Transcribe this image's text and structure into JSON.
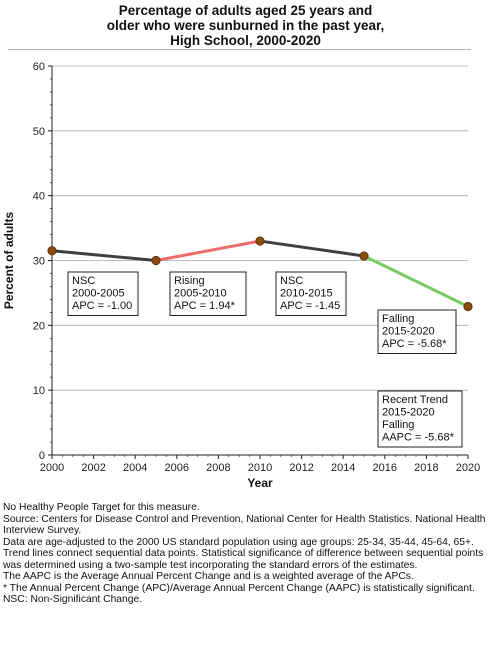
{
  "title": {
    "line1": "Percentage of adults aged 25 years and",
    "line2": "older who were sunburned in the past year,",
    "line3": "High School,  2000-2020"
  },
  "chart_data": {
    "type": "line",
    "xlabel": "Year",
    "ylabel": "Percent of adults",
    "xlim": [
      2000,
      2020
    ],
    "ylim": [
      0,
      60
    ],
    "xticks": [
      2000,
      2002,
      2004,
      2006,
      2008,
      2010,
      2012,
      2014,
      2016,
      2018,
      2020
    ],
    "yticks": [
      0,
      10,
      20,
      30,
      40,
      50,
      60
    ],
    "grid": "horizontal",
    "points": [
      {
        "x": 2000,
        "y": 31.5
      },
      {
        "x": 2005,
        "y": 30.0
      },
      {
        "x": 2010,
        "y": 33.0
      },
      {
        "x": 2015,
        "y": 30.7
      },
      {
        "x": 2020,
        "y": 22.9
      }
    ],
    "segments": [
      {
        "from": 2000,
        "to": 2005,
        "color": "#404040",
        "trend": "NSC"
      },
      {
        "from": 2005,
        "to": 2010,
        "color": "#ee6b6b",
        "trend": "Rising"
      },
      {
        "from": 2010,
        "to": 2015,
        "color": "#404040",
        "trend": "NSC"
      },
      {
        "from": 2015,
        "to": 2020,
        "color": "#77cc66",
        "trend": "Falling"
      }
    ],
    "marker_color": "#8b4a0e",
    "annotations": [
      {
        "lines": [
          "NSC",
          "2000-2005",
          "APC = -1.00"
        ]
      },
      {
        "lines": [
          "Rising",
          "2005-2010",
          "APC =  1.94*"
        ]
      },
      {
        "lines": [
          "NSC",
          "2010-2015",
          "APC = -1.45"
        ]
      },
      {
        "lines": [
          "Falling",
          "2015-2020",
          "APC = -5.68*"
        ]
      },
      {
        "lines": [
          "Recent Trend",
          "2015-2020",
          "Falling",
          "AAPC = -5.68*"
        ]
      }
    ]
  },
  "footer": [
    "No Healthy People Target for this measure.",
    "Source: Centers for Disease Control and Prevention, National Center for Health Statistics. National Health Interview Survey.",
    "Data are age-adjusted to the 2000 US standard population using age groups: 25-34, 35-44, 45-64, 65+.",
    "Trend lines connect sequential data points. Statistical significance of difference between sequential points was determined using a two-sample test incorporating the standard errors of the estimates.",
    "The AAPC is the Average Annual Percent Change and is a weighted average of the APCs.",
    "* The Annual Percent Change (APC)/Average Annual Percent Change (AAPC) is statistically significant.",
    "NSC: Non-Significant Change."
  ]
}
